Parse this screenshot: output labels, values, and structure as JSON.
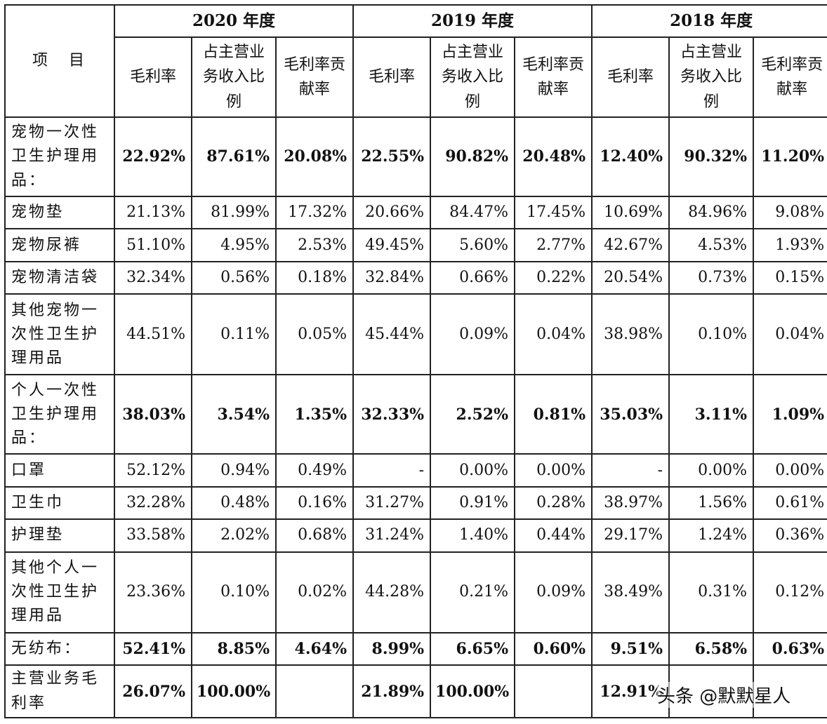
{
  "header": {
    "item": "项　目",
    "years": [
      "2020 年度",
      "2019 年度",
      "2018 年度"
    ],
    "sub": [
      "毛利率",
      "占主营业务收入比例",
      "毛利率贡献率"
    ]
  },
  "rows": [
    {
      "label": "宠物一次性卫生护理用品：",
      "bold": true,
      "v": [
        "22.92%",
        "87.61%",
        "20.08%",
        "22.55%",
        "90.82%",
        "20.48%",
        "12.40%",
        "90.32%",
        "11.20%"
      ]
    },
    {
      "label": "宠物垫",
      "bold": false,
      "v": [
        "21.13%",
        "81.99%",
        "17.32%",
        "20.66%",
        "84.47%",
        "17.45%",
        "10.69%",
        "84.96%",
        "9.08%"
      ]
    },
    {
      "label": "宠物尿裤",
      "bold": false,
      "v": [
        "51.10%",
        "4.95%",
        "2.53%",
        "49.45%",
        "5.60%",
        "2.77%",
        "42.67%",
        "4.53%",
        "1.93%"
      ]
    },
    {
      "label": "宠物清洁袋",
      "bold": false,
      "v": [
        "32.34%",
        "0.56%",
        "0.18%",
        "32.84%",
        "0.66%",
        "0.22%",
        "20.54%",
        "0.73%",
        "0.15%"
      ]
    },
    {
      "label": "其他宠物一次性卫生护理用品",
      "bold": false,
      "v": [
        "44.51%",
        "0.11%",
        "0.05%",
        "45.44%",
        "0.09%",
        "0.04%",
        "38.98%",
        "0.10%",
        "0.04%"
      ]
    },
    {
      "label": "个人一次性卫生护理用品：",
      "bold": true,
      "v": [
        "38.03%",
        "3.54%",
        "1.35%",
        "32.33%",
        "2.52%",
        "0.81%",
        "35.03%",
        "3.11%",
        "1.09%"
      ]
    },
    {
      "label": "口罩",
      "bold": false,
      "v": [
        "52.12%",
        "0.94%",
        "0.49%",
        "-",
        "0.00%",
        "0.00%",
        "-",
        "0.00%",
        "0.00%"
      ]
    },
    {
      "label": "卫生巾",
      "bold": false,
      "v": [
        "32.28%",
        "0.48%",
        "0.16%",
        "31.27%",
        "0.91%",
        "0.28%",
        "38.97%",
        "1.56%",
        "0.61%"
      ]
    },
    {
      "label": "护理垫",
      "bold": false,
      "v": [
        "33.58%",
        "2.02%",
        "0.68%",
        "31.24%",
        "1.40%",
        "0.44%",
        "29.17%",
        "1.24%",
        "0.36%"
      ]
    },
    {
      "label": "其他个人一次性卫生护理用品",
      "bold": false,
      "v": [
        "23.36%",
        "0.10%",
        "0.02%",
        "44.28%",
        "0.21%",
        "0.09%",
        "38.49%",
        "0.31%",
        "0.12%"
      ]
    },
    {
      "label": "无纺布：",
      "bold": true,
      "v": [
        "52.41%",
        "8.85%",
        "4.64%",
        "8.99%",
        "6.65%",
        "0.60%",
        "9.51%",
        "6.58%",
        "0.63%"
      ]
    },
    {
      "label": "主营业务毛利率",
      "bold": true,
      "v": [
        "26.07%",
        "100.00%",
        "",
        "21.89%",
        "100.00%",
        "",
        "12.91%",
        "",
        ""
      ]
    }
  ],
  "watermark": "头条 @默默星人"
}
